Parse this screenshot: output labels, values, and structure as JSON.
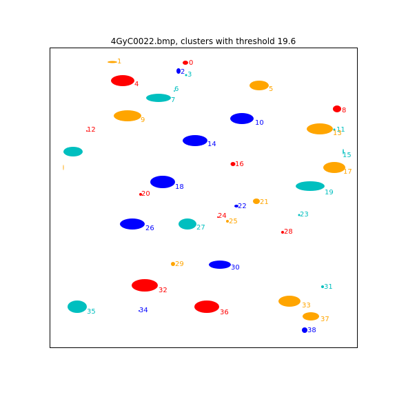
{
  "chart_data": {
    "type": "scatter",
    "title": "4GyC0022.bmp, clusters with threshold 19.6",
    "xlabel": "",
    "ylabel": "",
    "axes_visible": false,
    "palette": {
      "red": "#ff0000",
      "blue": "#0000ff",
      "cyan": "#00bfbf",
      "orange": "#ffa500"
    },
    "clusters": [
      {
        "label": "0",
        "color": "red",
        "size": "tiny"
      },
      {
        "label": "1",
        "color": "orange",
        "size": "sliver"
      },
      {
        "label": "2",
        "color": "blue",
        "size": "tiny"
      },
      {
        "label": "3",
        "color": "cyan",
        "size": "dot"
      },
      {
        "label": "4",
        "color": "red",
        "size": "large"
      },
      {
        "label": "5",
        "color": "orange",
        "size": "medium"
      },
      {
        "label": "6",
        "color": "cyan",
        "size": "dot"
      },
      {
        "label": "7",
        "color": "cyan",
        "size": "large"
      },
      {
        "label": "8",
        "color": "red",
        "size": "small"
      },
      {
        "label": "9",
        "color": "orange",
        "size": "large"
      },
      {
        "label": "10",
        "color": "blue",
        "size": "large"
      },
      {
        "label": "11",
        "color": "cyan",
        "size": "dot"
      },
      {
        "label": "12",
        "color": "red",
        "size": "dot"
      },
      {
        "label": "13",
        "color": "orange",
        "size": "large"
      },
      {
        "label": "14",
        "color": "blue",
        "size": "large"
      },
      {
        "label": "15",
        "color": "cyan",
        "size": "sliver"
      },
      {
        "label": "16",
        "color": "red",
        "size": "tiny"
      },
      {
        "label": "17",
        "color": "orange",
        "size": "large"
      },
      {
        "label": "18",
        "color": "blue",
        "size": "large"
      },
      {
        "label": "19",
        "color": "cyan",
        "size": "large"
      },
      {
        "label": "20",
        "color": "red",
        "size": "dot"
      },
      {
        "label": "21",
        "color": "orange",
        "size": "small"
      },
      {
        "label": "22",
        "color": "blue",
        "size": "tiny"
      },
      {
        "label": "23",
        "color": "cyan",
        "size": "dot"
      },
      {
        "label": "24",
        "color": "red",
        "size": "dot"
      },
      {
        "label": "25",
        "color": "orange",
        "size": "dot"
      },
      {
        "label": "26",
        "color": "blue",
        "size": "large"
      },
      {
        "label": "27",
        "color": "cyan",
        "size": "large"
      },
      {
        "label": "28",
        "color": "red",
        "size": "dot"
      },
      {
        "label": "29",
        "color": "orange",
        "size": "tiny"
      },
      {
        "label": "30",
        "color": "blue",
        "size": "large"
      },
      {
        "label": "31",
        "color": "cyan",
        "size": "dot"
      },
      {
        "label": "32",
        "color": "red",
        "size": "large"
      },
      {
        "label": "33",
        "color": "orange",
        "size": "large"
      },
      {
        "label": "34",
        "color": "blue",
        "size": "dot"
      },
      {
        "label": "35",
        "color": "cyan",
        "size": "large"
      },
      {
        "label": "36",
        "color": "red",
        "size": "large"
      },
      {
        "label": "37",
        "color": "orange",
        "size": "medium"
      },
      {
        "label": "38",
        "color": "blue",
        "size": "small"
      }
    ],
    "unlabeled_blobs": [
      {
        "color": "cyan",
        "size": "large"
      },
      {
        "color": "orange",
        "size": "sliver"
      }
    ]
  }
}
